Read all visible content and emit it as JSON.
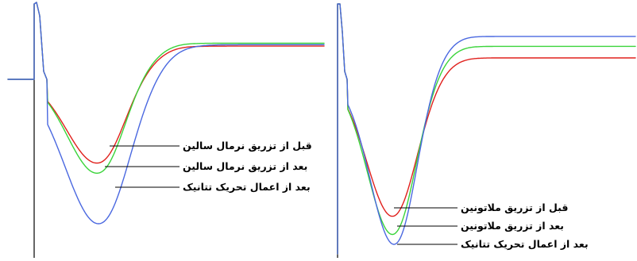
{
  "colors": {
    "red": "#e0201c",
    "green": "#3ad43a",
    "blue": "#4a68e0",
    "axis": "#000000",
    "background": "#ffffff"
  },
  "chart_data": [
    {
      "type": "line",
      "title": "",
      "xlabel": "",
      "ylabel": "",
      "grid": false,
      "series": [
        {
          "name": "قبل از تزریق نرمال سالین",
          "color": "#e0201c",
          "trough": -0.58,
          "plateau": 0.23
        },
        {
          "name": "بعد از تزریق نرمال سالین",
          "color": "#3ad43a",
          "trough": -0.65,
          "plateau": 0.25
        },
        {
          "name": "بعد از اعمال تحریک تتانیک",
          "color": "#4a68e0",
          "trough": -1.0,
          "plateau": 0.24
        }
      ],
      "annotations": [
        "قبل از تزریق نرمال سالین",
        "بعد از تزریق نرمال سالین",
        "بعد از اعمال تحریک تتانیک"
      ]
    },
    {
      "type": "line",
      "title": "",
      "xlabel": "",
      "ylabel": "",
      "grid": false,
      "series": [
        {
          "name": "قبل از تزریق ملاتونین",
          "color": "#e0201c",
          "trough": -0.83,
          "plateau": 0.13
        },
        {
          "name": "بعد از تزریق ملاتونین",
          "color": "#3ad43a",
          "trough": -0.94,
          "plateau": 0.2
        },
        {
          "name": "بعد از اعمال تحریک تتانیک",
          "color": "#4a68e0",
          "trough": -1.0,
          "plateau": 0.26
        }
      ],
      "annotations": [
        "قبل از تزریق ملاتونین",
        "بعد از تزریق ملاتونین",
        "بعد از اعمال تحریک تتانیک"
      ]
    }
  ]
}
